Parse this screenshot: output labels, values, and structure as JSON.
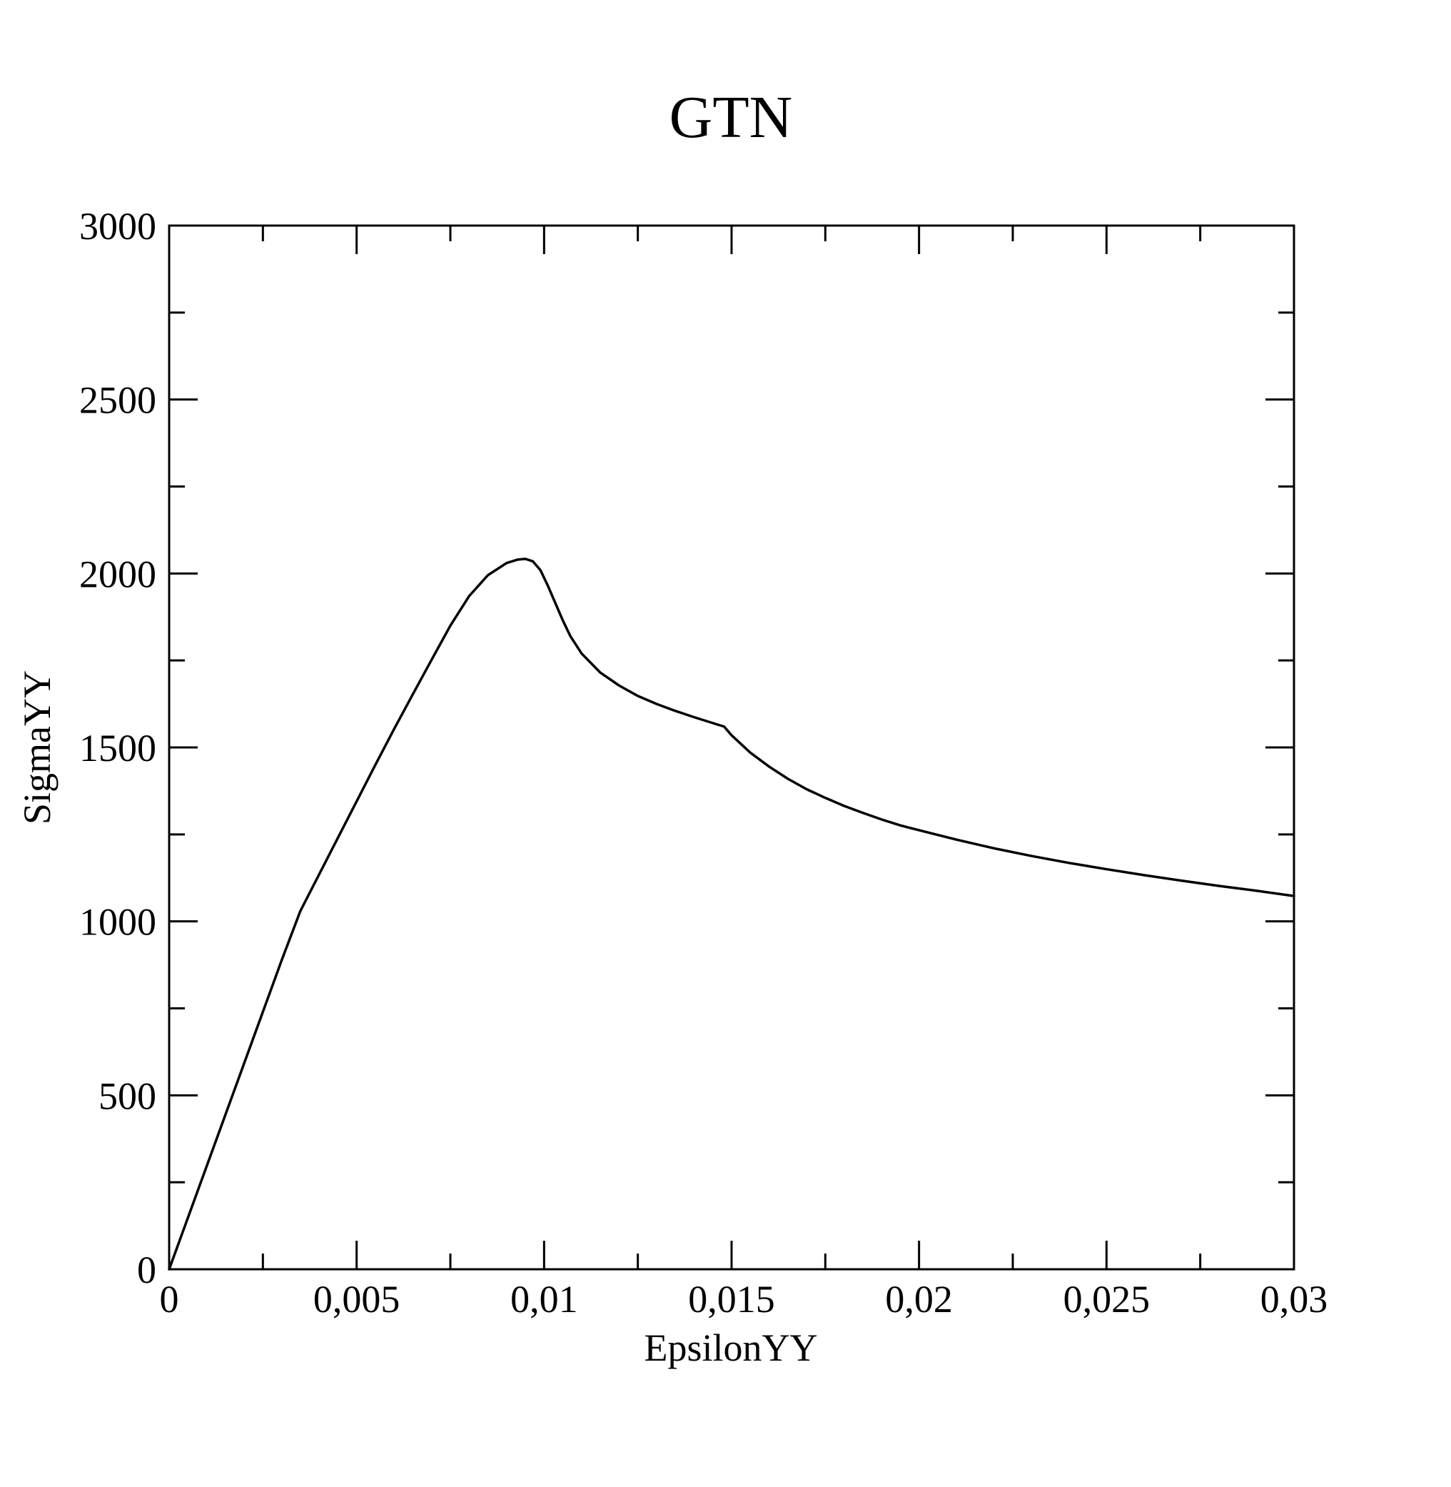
{
  "chart_data": {
    "type": "line",
    "title": "GTN",
    "xlabel": "EpsilonYY",
    "ylabel": "SigmaYY",
    "xlim": [
      0,
      0.03
    ],
    "ylim": [
      0,
      3000
    ],
    "grid": false,
    "legend": "none",
    "x_ticks_major": [
      0,
      0.005,
      0.01,
      0.015,
      0.02,
      0.025,
      0.03
    ],
    "x_tick_labels": [
      "0",
      "0,005",
      "0,01",
      "0,015",
      "0,02",
      "0,025",
      "0,03"
    ],
    "x_ticks_minor": [
      0.0025,
      0.0075,
      0.0125,
      0.0175,
      0.0225,
      0.0275
    ],
    "y_ticks_major": [
      0,
      500,
      1000,
      1500,
      2000,
      2500,
      3000
    ],
    "y_tick_labels": [
      "0",
      "500",
      "1000",
      "1500",
      "2000",
      "2500",
      "3000"
    ],
    "y_ticks_minor": [
      250,
      750,
      1250,
      1750,
      2250,
      2750
    ],
    "series": [
      {
        "line_color": "#000000",
        "x": [
          0,
          0.0005,
          0.001,
          0.0015,
          0.002,
          0.0025,
          0.003,
          0.0035,
          0.004,
          0.0045,
          0.005,
          0.0055,
          0.006,
          0.0065,
          0.007,
          0.0075,
          0.008,
          0.0085,
          0.009,
          0.0093,
          0.0095,
          0.0097,
          0.0099,
          0.0101,
          0.0103,
          0.0105,
          0.0107,
          0.011,
          0.0115,
          0.012,
          0.0125,
          0.013,
          0.0135,
          0.014,
          0.0145,
          0.0148,
          0.015,
          0.0155,
          0.016,
          0.0165,
          0.017,
          0.0175,
          0.018,
          0.0185,
          0.019,
          0.0195,
          0.02,
          0.021,
          0.022,
          0.023,
          0.024,
          0.025,
          0.026,
          0.027,
          0.028,
          0.029,
          0.03
        ],
        "y": [
          0,
          148,
          296,
          444,
          592,
          740,
          888,
          1030,
          1135,
          1240,
          1345,
          1450,
          1553,
          1653,
          1752,
          1850,
          1935,
          1995,
          2030,
          2040,
          2042,
          2035,
          2010,
          1965,
          1915,
          1865,
          1820,
          1770,
          1715,
          1678,
          1648,
          1625,
          1605,
          1587,
          1570,
          1560,
          1535,
          1485,
          1445,
          1410,
          1380,
          1355,
          1332,
          1312,
          1293,
          1276,
          1262,
          1235,
          1210,
          1188,
          1168,
          1150,
          1133,
          1117,
          1102,
          1088,
          1073
        ]
      }
    ]
  }
}
